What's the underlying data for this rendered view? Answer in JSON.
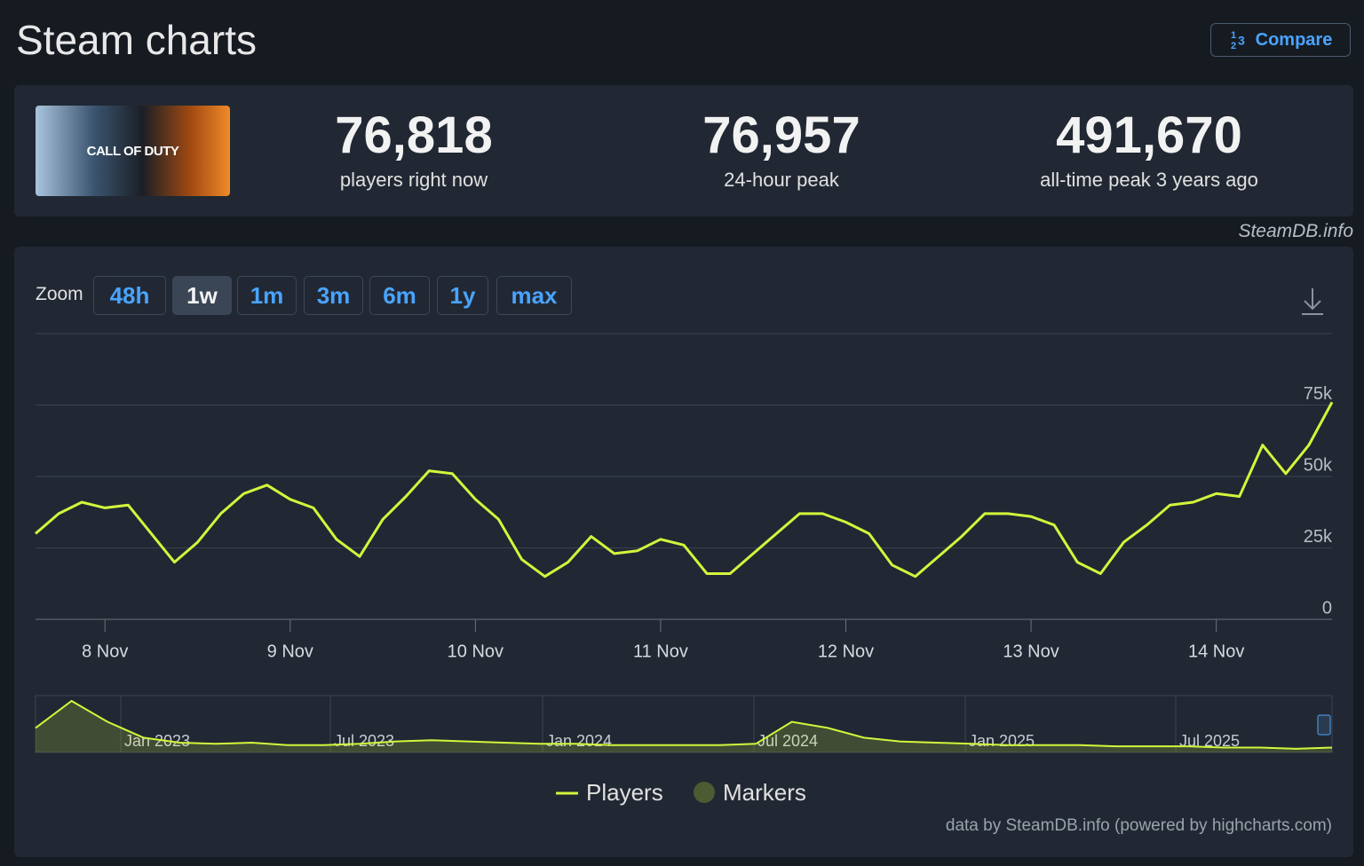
{
  "header": {
    "title": "Steam charts",
    "compare": "Compare"
  },
  "game": {
    "logo_text": "CALL OF DUTY"
  },
  "stats": [
    {
      "value": "76,818",
      "label": "players right now"
    },
    {
      "value": "76,957",
      "label": "24-hour peak"
    },
    {
      "value": "491,670",
      "label": "all-time peak 3 years ago"
    }
  ],
  "watermark": "SteamDB.info",
  "zoom": {
    "label": "Zoom",
    "buttons": [
      "48h",
      "1w",
      "1m",
      "3m",
      "6m",
      "1y",
      "max"
    ],
    "active": "1w"
  },
  "chart_data": {
    "type": "line",
    "categories": [
      null,
      null,
      null,
      "8 Nov",
      null,
      null,
      null,
      null,
      null,
      null,
      null,
      "9 Nov",
      null,
      null,
      null,
      null,
      null,
      null,
      null,
      "10 Nov",
      null,
      null,
      null,
      null,
      null,
      null,
      null,
      "11 Nov",
      null,
      null,
      null,
      null,
      null,
      null,
      null,
      "12 Nov",
      null,
      null,
      null,
      null,
      null,
      null,
      null,
      "13 Nov",
      null,
      null,
      null,
      null,
      null,
      null,
      null,
      "14 Nov",
      null,
      null,
      null,
      null,
      null
    ],
    "series": [
      {
        "name": "Players",
        "color": "#d4f53c",
        "values": [
          30000,
          37000,
          41000,
          39000,
          40000,
          30000,
          20000,
          27000,
          37000,
          44000,
          47000,
          42000,
          39000,
          28000,
          22000,
          35000,
          43000,
          52000,
          51000,
          42000,
          35000,
          21000,
          15000,
          20000,
          29000,
          23000,
          24000,
          28000,
          26000,
          16000,
          16000,
          23000,
          30000,
          37000,
          37000,
          34000,
          30000,
          19000,
          15000,
          22000,
          29000,
          37000,
          37000,
          36000,
          33000,
          20000,
          16000,
          27000,
          33000,
          40000,
          41000,
          44000,
          43000,
          61000,
          51000,
          61000,
          76000
        ]
      }
    ],
    "markers": {
      "name": "Markers",
      "color": "#4d5a32"
    },
    "ylim": [
      0,
      100000
    ],
    "yticks": [
      {
        "value": 0,
        "label": "0"
      },
      {
        "value": 25000,
        "label": "25k"
      },
      {
        "value": 50000,
        "label": "50k"
      },
      {
        "value": 75000,
        "label": "75k"
      }
    ],
    "grid": true
  },
  "navigator": {
    "color": "#d4f53c",
    "labels": [
      "Jan 2023",
      "Jul 2023",
      "Jan 2024",
      "Jul 2024",
      "Jan 2025",
      "Jul 2025"
    ],
    "values": [
      200000,
      420000,
      250000,
      120000,
      80000,
      70000,
      80000,
      60000,
      60000,
      70000,
      90000,
      100000,
      90000,
      80000,
      70000,
      70000,
      60000,
      60000,
      60000,
      60000,
      70000,
      250000,
      200000,
      120000,
      90000,
      80000,
      70000,
      60000,
      60000,
      60000,
      50000,
      50000,
      50000,
      40000,
      40000,
      30000,
      40000
    ]
  },
  "credit": "data by SteamDB.info (powered by highcharts.com)"
}
